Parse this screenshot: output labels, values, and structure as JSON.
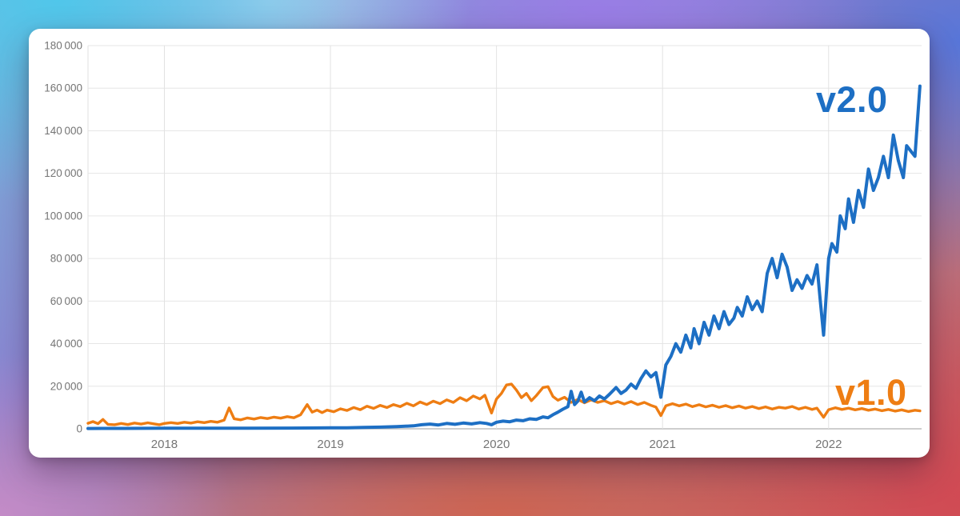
{
  "chart_data": {
    "type": "line",
    "title": "",
    "xlabel": "",
    "ylabel": "",
    "grid": true,
    "legend_position": "inline-end-of-line",
    "x_range": [
      2017.54,
      2022.56
    ],
    "ylim": [
      0,
      180000
    ],
    "x_ticks": [
      {
        "t": 2018,
        "label": "2018"
      },
      {
        "t": 2019,
        "label": "2019"
      },
      {
        "t": 2020,
        "label": "2020"
      },
      {
        "t": 2021,
        "label": "2021"
      },
      {
        "t": 2022,
        "label": "2022"
      }
    ],
    "y_ticks": [
      {
        "v": 0,
        "label": "0"
      },
      {
        "v": 20000,
        "label": "20 000"
      },
      {
        "v": 40000,
        "label": "40 000"
      },
      {
        "v": 60000,
        "label": "60 000"
      },
      {
        "v": 80000,
        "label": "80 000"
      },
      {
        "v": 100000,
        "label": "100 000"
      },
      {
        "v": 120000,
        "label": "120 000"
      },
      {
        "v": 140000,
        "label": "140 000"
      },
      {
        "v": 160000,
        "label": "160 000"
      },
      {
        "v": 180000,
        "label": "180 000"
      }
    ],
    "series": [
      {
        "name": "v1.0",
        "color": "#ee7d13",
        "stroke_width": 3.4,
        "points": [
          [
            2017.54,
            2600
          ],
          [
            2017.57,
            3400
          ],
          [
            2017.6,
            2400
          ],
          [
            2017.63,
            4400
          ],
          [
            2017.66,
            2100
          ],
          [
            2017.7,
            1900
          ],
          [
            2017.74,
            2500
          ],
          [
            2017.78,
            2000
          ],
          [
            2017.82,
            2700
          ],
          [
            2017.86,
            2200
          ],
          [
            2017.9,
            2800
          ],
          [
            2017.94,
            2300
          ],
          [
            2017.97,
            1900
          ],
          [
            2018.0,
            2500
          ],
          [
            2018.04,
            2900
          ],
          [
            2018.08,
            2500
          ],
          [
            2018.12,
            3100
          ],
          [
            2018.16,
            2700
          ],
          [
            2018.2,
            3300
          ],
          [
            2018.24,
            2900
          ],
          [
            2018.28,
            3500
          ],
          [
            2018.32,
            3100
          ],
          [
            2018.36,
            4100
          ],
          [
            2018.39,
            9800
          ],
          [
            2018.42,
            4700
          ],
          [
            2018.46,
            4200
          ],
          [
            2018.5,
            5100
          ],
          [
            2018.54,
            4600
          ],
          [
            2018.58,
            5300
          ],
          [
            2018.62,
            4800
          ],
          [
            2018.66,
            5500
          ],
          [
            2018.7,
            5000
          ],
          [
            2018.74,
            5700
          ],
          [
            2018.78,
            5200
          ],
          [
            2018.82,
            6600
          ],
          [
            2018.86,
            11400
          ],
          [
            2018.89,
            7800
          ],
          [
            2018.92,
            8800
          ],
          [
            2018.95,
            7600
          ],
          [
            2018.98,
            8800
          ],
          [
            2019.02,
            8000
          ],
          [
            2019.06,
            9400
          ],
          [
            2019.1,
            8600
          ],
          [
            2019.14,
            10000
          ],
          [
            2019.18,
            9000
          ],
          [
            2019.22,
            10600
          ],
          [
            2019.26,
            9600
          ],
          [
            2019.3,
            11000
          ],
          [
            2019.34,
            10000
          ],
          [
            2019.38,
            11400
          ],
          [
            2019.42,
            10400
          ],
          [
            2019.46,
            12000
          ],
          [
            2019.5,
            10800
          ],
          [
            2019.54,
            12600
          ],
          [
            2019.58,
            11400
          ],
          [
            2019.62,
            13000
          ],
          [
            2019.66,
            11800
          ],
          [
            2019.7,
            13600
          ],
          [
            2019.74,
            12400
          ],
          [
            2019.78,
            14600
          ],
          [
            2019.82,
            13200
          ],
          [
            2019.86,
            15400
          ],
          [
            2019.9,
            14000
          ],
          [
            2019.93,
            15800
          ],
          [
            2019.97,
            7400
          ],
          [
            2020.0,
            14000
          ],
          [
            2020.03,
            16600
          ],
          [
            2020.06,
            20600
          ],
          [
            2020.09,
            21000
          ],
          [
            2020.12,
            18200
          ],
          [
            2020.15,
            14600
          ],
          [
            2020.18,
            16600
          ],
          [
            2020.21,
            13200
          ],
          [
            2020.24,
            15600
          ],
          [
            2020.28,
            19400
          ],
          [
            2020.31,
            19800
          ],
          [
            2020.34,
            15200
          ],
          [
            2020.37,
            13400
          ],
          [
            2020.41,
            14800
          ],
          [
            2020.45,
            12400
          ],
          [
            2020.49,
            13800
          ],
          [
            2020.53,
            12200
          ],
          [
            2020.57,
            13600
          ],
          [
            2020.61,
            12400
          ],
          [
            2020.65,
            13200
          ],
          [
            2020.69,
            11800
          ],
          [
            2020.73,
            12800
          ],
          [
            2020.77,
            11600
          ],
          [
            2020.81,
            12800
          ],
          [
            2020.85,
            11400
          ],
          [
            2020.89,
            12400
          ],
          [
            2020.93,
            11000
          ],
          [
            2020.96,
            10200
          ],
          [
            2020.99,
            6200
          ],
          [
            2021.02,
            10800
          ],
          [
            2021.06,
            11800
          ],
          [
            2021.1,
            10800
          ],
          [
            2021.14,
            11600
          ],
          [
            2021.18,
            10400
          ],
          [
            2021.22,
            11300
          ],
          [
            2021.26,
            10300
          ],
          [
            2021.3,
            11100
          ],
          [
            2021.34,
            10100
          ],
          [
            2021.38,
            10900
          ],
          [
            2021.42,
            9900
          ],
          [
            2021.46,
            10700
          ],
          [
            2021.5,
            9700
          ],
          [
            2021.54,
            10500
          ],
          [
            2021.58,
            9500
          ],
          [
            2021.62,
            10300
          ],
          [
            2021.66,
            9300
          ],
          [
            2021.7,
            10100
          ],
          [
            2021.74,
            9700
          ],
          [
            2021.78,
            10500
          ],
          [
            2021.82,
            9300
          ],
          [
            2021.86,
            10100
          ],
          [
            2021.9,
            9100
          ],
          [
            2021.93,
            9700
          ],
          [
            2021.97,
            5400
          ],
          [
            2022.0,
            9000
          ],
          [
            2022.04,
            9900
          ],
          [
            2022.08,
            9100
          ],
          [
            2022.12,
            9700
          ],
          [
            2022.16,
            8900
          ],
          [
            2022.2,
            9500
          ],
          [
            2022.24,
            8700
          ],
          [
            2022.28,
            9300
          ],
          [
            2022.32,
            8500
          ],
          [
            2022.36,
            9100
          ],
          [
            2022.4,
            8300
          ],
          [
            2022.44,
            8900
          ],
          [
            2022.48,
            8100
          ],
          [
            2022.52,
            8700
          ],
          [
            2022.55,
            8400
          ]
        ]
      },
      {
        "name": "v2.0",
        "color": "#1d6fc4",
        "stroke_width": 4,
        "points": [
          [
            2017.54,
            150
          ],
          [
            2017.75,
            200
          ],
          [
            2018.0,
            250
          ],
          [
            2018.25,
            250
          ],
          [
            2018.5,
            300
          ],
          [
            2018.75,
            350
          ],
          [
            2019.0,
            450
          ],
          [
            2019.1,
            500
          ],
          [
            2019.2,
            650
          ],
          [
            2019.3,
            800
          ],
          [
            2019.4,
            1000
          ],
          [
            2019.5,
            1400
          ],
          [
            2019.55,
            1900
          ],
          [
            2019.6,
            2200
          ],
          [
            2019.65,
            1800
          ],
          [
            2019.7,
            2500
          ],
          [
            2019.75,
            2100
          ],
          [
            2019.8,
            2700
          ],
          [
            2019.85,
            2300
          ],
          [
            2019.9,
            2900
          ],
          [
            2019.94,
            2500
          ],
          [
            2019.97,
            1900
          ],
          [
            2020.0,
            3100
          ],
          [
            2020.04,
            3600
          ],
          [
            2020.08,
            3300
          ],
          [
            2020.12,
            4100
          ],
          [
            2020.16,
            3800
          ],
          [
            2020.2,
            4700
          ],
          [
            2020.24,
            4400
          ],
          [
            2020.28,
            5600
          ],
          [
            2020.31,
            5200
          ],
          [
            2020.34,
            6600
          ],
          [
            2020.37,
            7800
          ],
          [
            2020.4,
            9200
          ],
          [
            2020.43,
            10400
          ],
          [
            2020.45,
            17600
          ],
          [
            2020.47,
            11400
          ],
          [
            2020.49,
            13000
          ],
          [
            2020.51,
            17200
          ],
          [
            2020.53,
            12600
          ],
          [
            2020.56,
            14600
          ],
          [
            2020.59,
            13200
          ],
          [
            2020.62,
            15400
          ],
          [
            2020.65,
            14000
          ],
          [
            2020.68,
            16200
          ],
          [
            2020.72,
            19400
          ],
          [
            2020.75,
            16600
          ],
          [
            2020.78,
            18200
          ],
          [
            2020.81,
            21000
          ],
          [
            2020.84,
            19000
          ],
          [
            2020.87,
            23600
          ],
          [
            2020.9,
            27200
          ],
          [
            2020.93,
            24400
          ],
          [
            2020.96,
            26400
          ],
          [
            2020.99,
            14800
          ],
          [
            2021.02,
            30000
          ],
          [
            2021.05,
            34000
          ],
          [
            2021.08,
            40000
          ],
          [
            2021.11,
            36000
          ],
          [
            2021.14,
            44000
          ],
          [
            2021.17,
            38000
          ],
          [
            2021.19,
            47000
          ],
          [
            2021.22,
            40000
          ],
          [
            2021.25,
            50000
          ],
          [
            2021.28,
            44000
          ],
          [
            2021.31,
            53000
          ],
          [
            2021.34,
            47000
          ],
          [
            2021.37,
            55000
          ],
          [
            2021.4,
            49000
          ],
          [
            2021.43,
            52000
          ],
          [
            2021.45,
            57000
          ],
          [
            2021.48,
            53000
          ],
          [
            2021.51,
            62000
          ],
          [
            2021.54,
            56000
          ],
          [
            2021.57,
            60000
          ],
          [
            2021.6,
            55000
          ],
          [
            2021.63,
            73000
          ],
          [
            2021.66,
            80000
          ],
          [
            2021.69,
            71000
          ],
          [
            2021.72,
            82000
          ],
          [
            2021.75,
            76000
          ],
          [
            2021.78,
            65000
          ],
          [
            2021.81,
            70000
          ],
          [
            2021.84,
            66000
          ],
          [
            2021.87,
            72000
          ],
          [
            2021.9,
            68000
          ],
          [
            2021.93,
            77000
          ],
          [
            2021.95,
            60000
          ],
          [
            2021.97,
            44000
          ],
          [
            2022.0,
            80000
          ],
          [
            2022.02,
            87000
          ],
          [
            2022.05,
            83000
          ],
          [
            2022.07,
            100000
          ],
          [
            2022.1,
            94000
          ],
          [
            2022.12,
            108000
          ],
          [
            2022.15,
            97000
          ],
          [
            2022.18,
            112000
          ],
          [
            2022.21,
            104000
          ],
          [
            2022.24,
            122000
          ],
          [
            2022.27,
            112000
          ],
          [
            2022.3,
            118000
          ],
          [
            2022.33,
            128000
          ],
          [
            2022.36,
            118000
          ],
          [
            2022.39,
            138000
          ],
          [
            2022.42,
            126000
          ],
          [
            2022.45,
            118000
          ],
          [
            2022.47,
            133000
          ],
          [
            2022.5,
            130000
          ],
          [
            2022.52,
            128000
          ],
          [
            2022.55,
            161000
          ]
        ]
      }
    ]
  },
  "labels": {
    "v2_inline": "v2.0",
    "v1_inline": "v1.0"
  },
  "colors": {
    "v2_blue": "#1d6fc4",
    "v1_orange": "#ee7d13",
    "tick_text": "#757575",
    "gridline": "#e6e6e6",
    "year_line": "#e2e2e2",
    "zero_axis": "#bdbdbd",
    "card_background": "#ffffff"
  }
}
